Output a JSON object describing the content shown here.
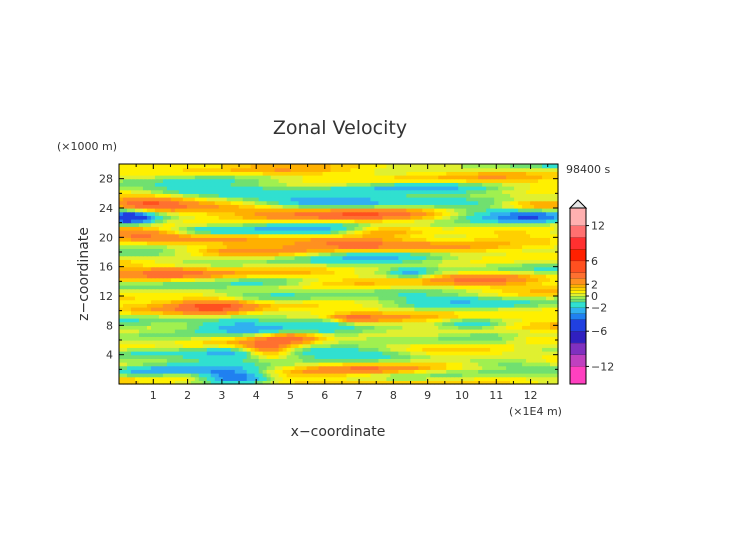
{
  "chart_data": {
    "type": "heatmap",
    "title": "Zonal Velocity",
    "xlabel": "x−coordinate",
    "ylabel": "z−coordinate",
    "x_unit": "(×1E4 m)",
    "y_unit": "(×1000 m)",
    "time_label": "98400 s",
    "xlim": [
      0,
      12.8
    ],
    "ylim": [
      0,
      30
    ],
    "x_ticks": [
      1,
      2,
      3,
      4,
      5,
      6,
      7,
      8,
      9,
      10,
      11,
      12
    ],
    "y_ticks": [
      4,
      8,
      12,
      16,
      20,
      24,
      28
    ],
    "grid": false,
    "colorbar": {
      "position": "right",
      "range": [
        -15,
        15
      ],
      "tick_values": [
        12,
        6,
        2,
        0,
        -2,
        -6,
        -12
      ],
      "tick_labels": [
        "12",
        "6",
        "2",
        "0",
        "−2",
        "−6",
        "−12"
      ],
      "levels": [
        {
          "min": -15,
          "max": -12,
          "color": "#ff40c0"
        },
        {
          "min": -12,
          "max": -10,
          "color": "#c040c0"
        },
        {
          "min": -10,
          "max": -8,
          "color": "#8030c0"
        },
        {
          "min": -8,
          "max": -6,
          "color": "#3020c0"
        },
        {
          "min": -6,
          "max": -4,
          "color": "#2040e0"
        },
        {
          "min": -4,
          "max": -3,
          "color": "#2080f0"
        },
        {
          "min": -3,
          "max": -2,
          "color": "#30b0f0"
        },
        {
          "min": -2,
          "max": -1,
          "color": "#30e0d0"
        },
        {
          "min": -1,
          "max": -0.5,
          "color": "#70e070"
        },
        {
          "min": -0.5,
          "max": 0,
          "color": "#a0f050"
        },
        {
          "min": 0,
          "max": 0.5,
          "color": "#e0f030"
        },
        {
          "min": 0.5,
          "max": 1,
          "color": "#fff000"
        },
        {
          "min": 1,
          "max": 1.5,
          "color": "#ffd000"
        },
        {
          "min": 1.5,
          "max": 2,
          "color": "#ffb000"
        },
        {
          "min": 2,
          "max": 3,
          "color": "#ff9020"
        },
        {
          "min": 3,
          "max": 4,
          "color": "#ff7030"
        },
        {
          "min": 4,
          "max": 6,
          "color": "#ff5020"
        },
        {
          "min": 6,
          "max": 8,
          "color": "#ff2000"
        },
        {
          "min": 8,
          "max": 10,
          "color": "#ff3030"
        },
        {
          "min": 10,
          "max": 12,
          "color": "#ff7070"
        },
        {
          "min": 12,
          "max": 15,
          "color": "#ffb0b0"
        }
      ]
    },
    "features": [
      {
        "x": 6.2,
        "z": 24.8,
        "u": -5,
        "sx": 1.6,
        "sz": 0.7
      },
      {
        "x": 0.3,
        "z": 22.8,
        "u": -5,
        "sx": 0.5,
        "sz": 0.7
      },
      {
        "x": 12.2,
        "z": 22.8,
        "u": -4,
        "sx": 1.0,
        "sz": 0.7
      },
      {
        "x": 10.8,
        "z": 23.6,
        "u": -2.5,
        "sx": 1.4,
        "sz": 0.8
      },
      {
        "x": 5.8,
        "z": 23.3,
        "u": 3.5,
        "sx": 2.4,
        "sz": 0.8
      },
      {
        "x": 0.8,
        "z": 24.6,
        "u": 3,
        "sx": 0.8,
        "sz": 0.6
      },
      {
        "x": 12.2,
        "z": 24.6,
        "u": 2.5,
        "sx": 1.0,
        "sz": 0.6
      },
      {
        "x": 2.0,
        "z": 26.4,
        "u": -2,
        "sx": 1.5,
        "sz": 0.5
      },
      {
        "x": 0.6,
        "z": 20.5,
        "u": 3,
        "sx": 1.0,
        "sz": 0.6
      },
      {
        "x": 2.5,
        "z": 21.0,
        "u": -2,
        "sx": 1.0,
        "sz": 0.5
      },
      {
        "x": 5.5,
        "z": 21.0,
        "u": -2,
        "sx": 1.5,
        "sz": 0.6
      },
      {
        "x": 7.6,
        "z": 21.0,
        "u": 2,
        "sx": 0.8,
        "sz": 0.6
      },
      {
        "x": 11.6,
        "z": 20.5,
        "u": 2.5,
        "sx": 1.2,
        "sz": 0.7
      },
      {
        "x": 6.7,
        "z": 19.2,
        "u": 3,
        "sx": 1.2,
        "sz": 0.6
      },
      {
        "x": 3.5,
        "z": 18.2,
        "u": 2.5,
        "sx": 1.5,
        "sz": 0.5
      },
      {
        "x": 7.5,
        "z": 17.6,
        "u": -1.5,
        "sx": 1.5,
        "sz": 0.5
      },
      {
        "x": 1.5,
        "z": 15.2,
        "u": 2.5,
        "sx": 1.0,
        "sz": 0.6
      },
      {
        "x": 8.5,
        "z": 15.2,
        "u": -2,
        "sx": 0.4,
        "sz": 0.5
      },
      {
        "x": 10.5,
        "z": 14.5,
        "u": 2,
        "sx": 1.0,
        "sz": 0.6
      },
      {
        "x": 4.6,
        "z": 14.0,
        "u": -1.5,
        "sx": 1.0,
        "sz": 0.5
      },
      {
        "x": 2.8,
        "z": 10.8,
        "u": 3,
        "sx": 0.8,
        "sz": 0.9
      },
      {
        "x": 3.5,
        "z": 8.0,
        "u": -2.5,
        "sx": 1.0,
        "sz": 0.8
      },
      {
        "x": 5.9,
        "z": 8.5,
        "u": -2,
        "sx": 0.6,
        "sz": 0.5
      },
      {
        "x": 6.8,
        "z": 9.0,
        "u": 2,
        "sx": 0.5,
        "sz": 0.4
      },
      {
        "x": 10.3,
        "z": 8.3,
        "u": -2,
        "sx": 0.6,
        "sz": 0.5
      },
      {
        "x": 4.3,
        "z": 4.8,
        "u": 3.5,
        "sx": 0.5,
        "sz": 0.8
      },
      {
        "x": 5.0,
        "z": 6.4,
        "u": 3,
        "sx": 0.6,
        "sz": 0.6
      },
      {
        "x": 6.5,
        "z": 4.3,
        "u": -3,
        "sx": 1.8,
        "sz": 0.6
      },
      {
        "x": 3.3,
        "z": 4.1,
        "u": -2.5,
        "sx": 0.8,
        "sz": 0.7
      },
      {
        "x": 7.2,
        "z": 2.2,
        "u": 3.5,
        "sx": 1.5,
        "sz": 0.6
      },
      {
        "x": 3.4,
        "z": 1.0,
        "u": -5,
        "sx": 0.7,
        "sz": 0.6
      },
      {
        "x": 2.5,
        "z": 2.0,
        "u": -2,
        "sx": 1.0,
        "sz": 0.5
      },
      {
        "x": 0.6,
        "z": 1.6,
        "u": -2.5,
        "sx": 0.8,
        "sz": 0.6
      },
      {
        "x": 11.2,
        "z": 3.0,
        "u": -2,
        "sx": 1.0,
        "sz": 0.5
      },
      {
        "x": 12.2,
        "z": 6.3,
        "u": 2,
        "sx": 0.8,
        "sz": 0.5
      },
      {
        "x": 9.0,
        "z": 26.8,
        "u": -1.5,
        "sx": 2.0,
        "sz": 0.5
      },
      {
        "x": 9.5,
        "z": 11.5,
        "u": -1.2,
        "sx": 1.5,
        "sz": 0.6
      },
      {
        "x": 1.5,
        "z": 6.0,
        "u": -1.2,
        "sx": 1.2,
        "sz": 0.7
      }
    ]
  }
}
